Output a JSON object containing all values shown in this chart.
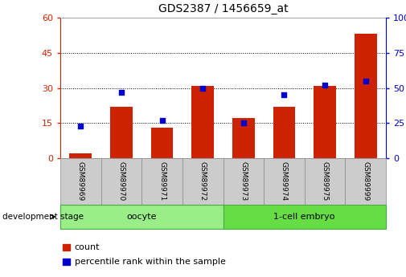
{
  "title": "GDS2387 / 1456659_at",
  "categories": [
    "GSM89969",
    "GSM89970",
    "GSM89971",
    "GSM89972",
    "GSM89973",
    "GSM89974",
    "GSM89975",
    "GSM89999"
  ],
  "counts": [
    2,
    22,
    13,
    31,
    17,
    22,
    31,
    53
  ],
  "percentiles": [
    23,
    47,
    27,
    50,
    25,
    45,
    52,
    55
  ],
  "left_ylim": [
    0,
    60
  ],
  "right_ylim": [
    0,
    100
  ],
  "left_yticks": [
    0,
    15,
    30,
    45,
    60
  ],
  "right_yticks": [
    0,
    25,
    50,
    75,
    100
  ],
  "bar_color": "#cc2200",
  "dot_color": "#0000cc",
  "groups": [
    {
      "label": "oocyte",
      "start": 0,
      "end": 4,
      "color": "#99ee88"
    },
    {
      "label": "1-cell embryo",
      "start": 4,
      "end": 8,
      "color": "#66dd44"
    }
  ],
  "group_row_label": "development stage",
  "legend_count_label": "count",
  "legend_percentile_label": "percentile rank within the sample",
  "bar_color_dark": "#aa1100",
  "dot_color_name": "#1111cc",
  "tick_label_color_left": "#cc2200",
  "tick_label_color_right": "#0000cc",
  "sample_box_color": "#cccccc",
  "sample_box_edge": "#888888",
  "group_edge_color": "#44aa44"
}
